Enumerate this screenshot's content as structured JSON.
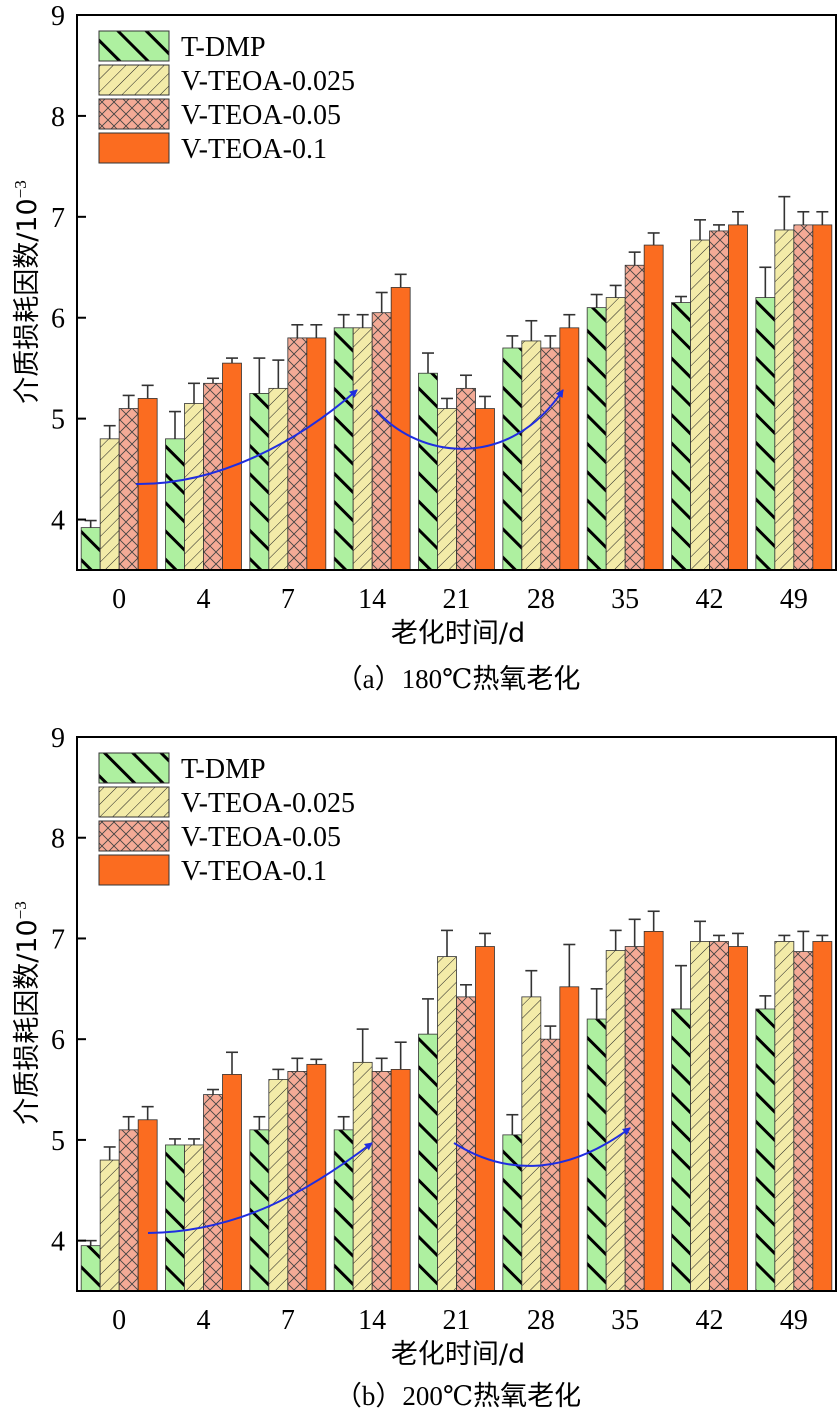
{
  "chart_data": [
    {
      "type": "bar",
      "caption": "（a）180℃热氧老化",
      "xlabel": "老化时间/d",
      "ylabel": "介质损耗因数/10",
      "ylabel_exp": "−3",
      "ylim": [
        3.5,
        9
      ],
      "yticks": [
        4,
        5,
        6,
        7,
        8,
        9
      ],
      "categories": [
        "0",
        "4",
        "7",
        "14",
        "21",
        "28",
        "35",
        "42",
        "49"
      ],
      "legend_position": "top-left",
      "series": [
        {
          "name": "T-DMP",
          "values": [
            3.92,
            4.8,
            5.25,
            5.9,
            5.45,
            5.7,
            6.1,
            6.15,
            6.2
          ],
          "errors": [
            0.07,
            0.27,
            0.35,
            0.13,
            0.2,
            0.12,
            0.13,
            0.06,
            0.3
          ]
        },
        {
          "name": "V-TEOA-0.025",
          "values": [
            4.8,
            5.15,
            5.3,
            5.9,
            5.1,
            5.77,
            6.2,
            6.77,
            6.87
          ],
          "errors": [
            0.13,
            0.2,
            0.28,
            0.13,
            0.1,
            0.2,
            0.12,
            0.2,
            0.33
          ]
        },
        {
          "name": "V-TEOA-0.05",
          "values": [
            5.1,
            5.35,
            5.8,
            6.05,
            5.3,
            5.7,
            6.52,
            6.86,
            6.92
          ],
          "errors": [
            0.13,
            0.05,
            0.13,
            0.2,
            0.13,
            0.12,
            0.13,
            0.06,
            0.13
          ]
        },
        {
          "name": "V-TEOA-0.1",
          "values": [
            5.2,
            5.55,
            5.8,
            6.3,
            5.1,
            5.9,
            6.72,
            6.92,
            6.92
          ],
          "errors": [
            0.13,
            0.05,
            0.13,
            0.13,
            0.12,
            0.13,
            0.12,
            0.13,
            0.13
          ]
        }
      ]
    },
    {
      "type": "bar",
      "caption": "（b）200℃热氧老化",
      "xlabel": "老化时间/d",
      "ylabel": "介质损耗因数/10",
      "ylabel_exp": "−3",
      "ylim": [
        3.5,
        9
      ],
      "yticks": [
        4,
        5,
        6,
        7,
        8,
        9
      ],
      "categories": [
        "0",
        "4",
        "7",
        "14",
        "21",
        "28",
        "35",
        "42",
        "49"
      ],
      "legend_position": "top-left",
      "series": [
        {
          "name": "T-DMP",
          "values": [
            3.95,
            4.95,
            5.1,
            5.1,
            6.05,
            5.05,
            6.2,
            6.3,
            6.3
          ],
          "errors": [
            0.05,
            0.06,
            0.13,
            0.13,
            0.35,
            0.2,
            0.3,
            0.43,
            0.13
          ]
        },
        {
          "name": "V-TEOA-0.025",
          "values": [
            4.8,
            4.95,
            5.6,
            5.77,
            6.82,
            6.42,
            6.88,
            6.97,
            6.97
          ],
          "errors": [
            0.13,
            0.06,
            0.1,
            0.33,
            0.26,
            0.26,
            0.2,
            0.2,
            0.06
          ]
        },
        {
          "name": "V-TEOA-0.05",
          "values": [
            5.1,
            5.45,
            5.68,
            5.68,
            6.42,
            6.0,
            6.92,
            6.97,
            6.87
          ],
          "errors": [
            0.13,
            0.05,
            0.13,
            0.13,
            0.12,
            0.13,
            0.27,
            0.06,
            0.2
          ]
        },
        {
          "name": "V-TEOA-0.1",
          "values": [
            5.2,
            5.65,
            5.75,
            5.7,
            6.92,
            6.52,
            7.07,
            6.92,
            6.97
          ],
          "errors": [
            0.13,
            0.22,
            0.05,
            0.27,
            0.13,
            0.42,
            0.2,
            0.13,
            0.06
          ]
        }
      ]
    }
  ],
  "colors": {
    "T-DMP": "#aef0a0",
    "V-TEOA-0.025": "#f3eba8",
    "V-TEOA-0.05": "#f4aa96",
    "V-TEOA-0.1": "#fb6c20",
    "arrow": "#1f2de0"
  }
}
